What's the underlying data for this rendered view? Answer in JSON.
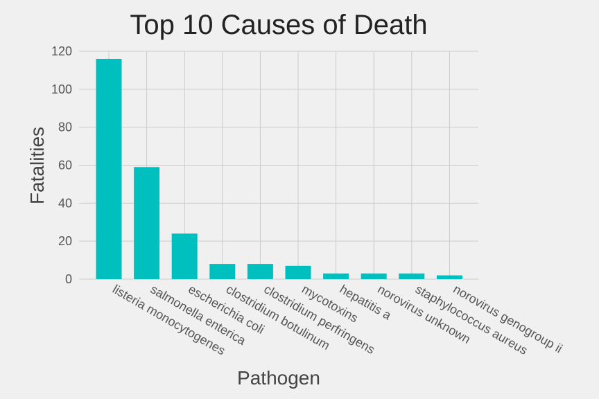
{
  "chart_data": {
    "type": "bar",
    "title": "Top 10 Causes of Death",
    "xlabel": "Pathogen",
    "ylabel": "Fatalities",
    "categories": [
      "listeria monocytogenes",
      "salmonella enterica",
      "escherichia coli",
      "clostridium botulinum",
      "clostridium perfringens",
      "mycotoxins",
      "hepatitis a",
      "norovirus unknown",
      "staphylococcus aureus",
      "norovirus genogroup ii"
    ],
    "values": [
      116,
      59,
      24,
      8,
      8,
      7,
      3,
      3,
      3,
      2
    ],
    "ylim": [
      0,
      120
    ],
    "yticks": [
      0,
      20,
      40,
      60,
      80,
      100,
      120
    ],
    "grid": true,
    "bar_color": "#00bfbf",
    "background": "#f0f0f0",
    "grid_color": "#cbcbcb"
  }
}
